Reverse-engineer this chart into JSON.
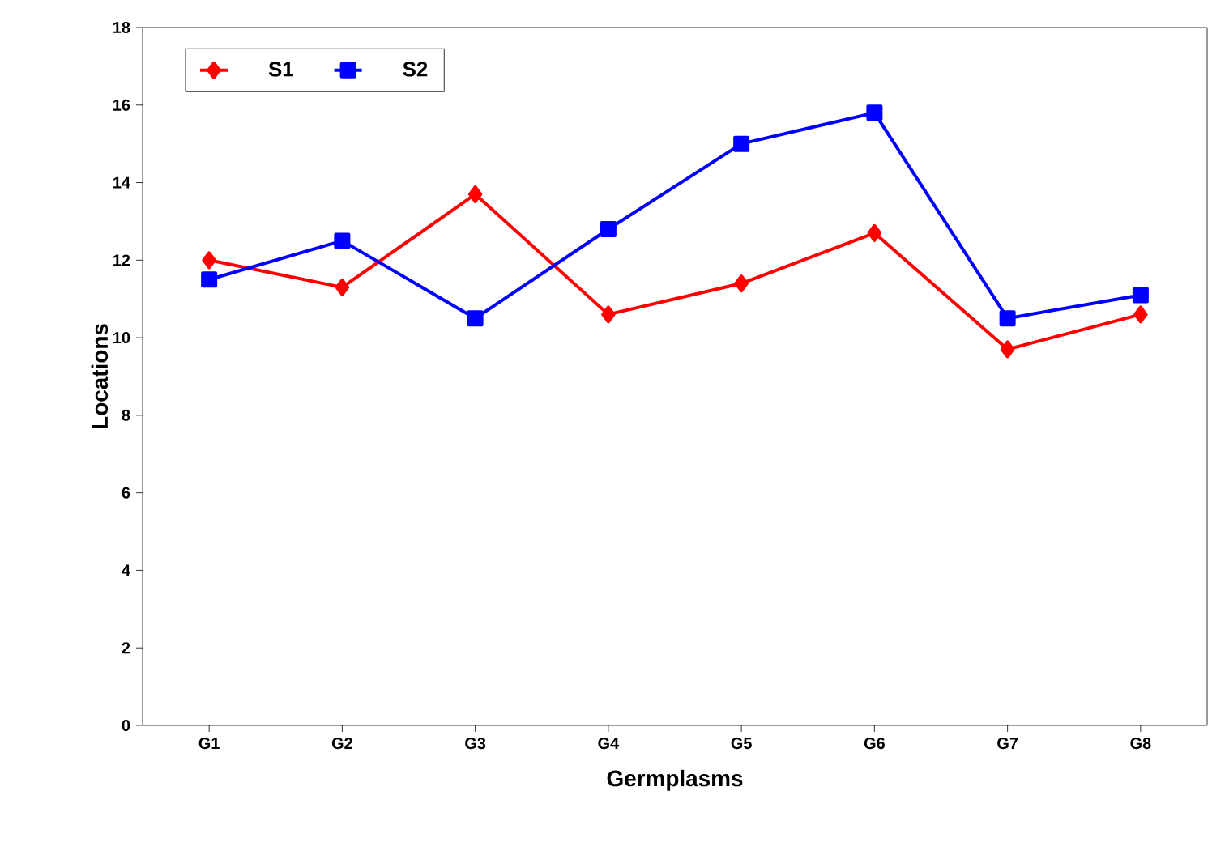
{
  "chart_data": {
    "type": "line",
    "xlabel": "Germplasms",
    "ylabel": "Locations",
    "categories": [
      "G1",
      "G2",
      "G3",
      "G4",
      "G5",
      "G6",
      "G7",
      "G8"
    ],
    "series": [
      {
        "name": "S1",
        "color": "#ff0000",
        "marker": "diamond",
        "values": [
          12.0,
          11.3,
          13.7,
          10.6,
          11.4,
          12.7,
          9.7,
          10.6
        ]
      },
      {
        "name": "S2",
        "color": "#0000ff",
        "marker": "square",
        "values": [
          11.5,
          12.5,
          10.5,
          12.8,
          15.0,
          15.8,
          10.5,
          11.1
        ]
      }
    ],
    "ylim": [
      0,
      18
    ],
    "yticks": [
      0,
      2,
      4,
      6,
      8,
      10,
      12,
      14,
      16,
      18
    ],
    "legend": "top left",
    "grid": false
  }
}
